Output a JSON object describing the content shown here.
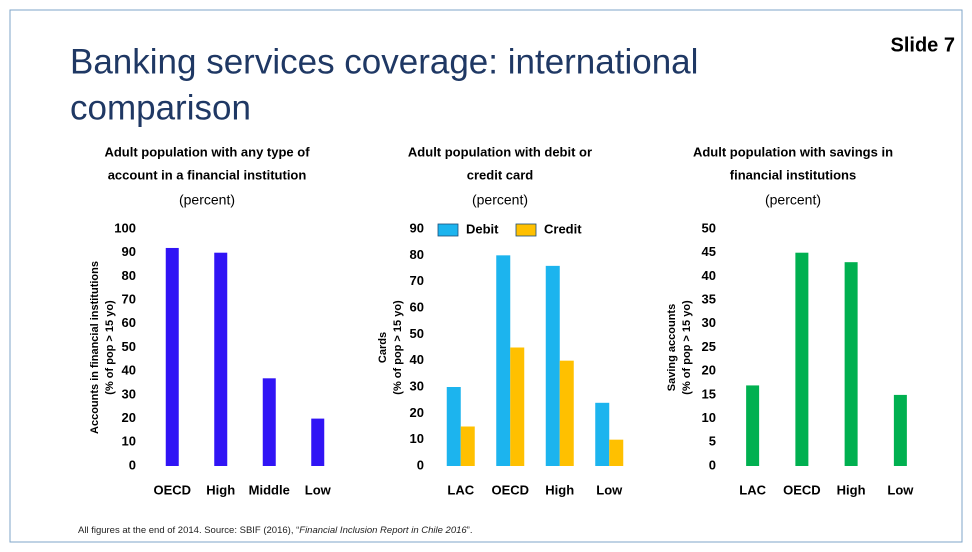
{
  "title": [
    "Banking services coverage: international",
    "comparison"
  ],
  "slide_label": "Slide 7",
  "footnote": [
    "All figures at the end of 2014. Source: SBIF (2016), “",
    "Financial Inclusion Report in Chile 2016",
    "”."
  ],
  "chart_data": [
    {
      "type": "bar",
      "title": [
        "Adult population with any type of",
        "account in a financial institution"
      ],
      "subtitle": "(percent)",
      "y_label": [
        "Accounts in financial institutions",
        "(% of pop > 15 yo)"
      ],
      "categories": [
        "OECD",
        "High",
        "Middle",
        "Low"
      ],
      "values": [
        92,
        90,
        37,
        20
      ],
      "color": "#3014f5",
      "ylim": [
        0,
        100
      ],
      "yticks": [
        0,
        10,
        20,
        30,
        40,
        50,
        60,
        70,
        80,
        90,
        100
      ],
      "grid": false
    },
    {
      "type": "bar",
      "title": [
        "Adult population with debit or",
        "credit card"
      ],
      "subtitle": "(percent)",
      "y_label": [
        "Cards",
        "(% of pop > 15 yo)"
      ],
      "categories": [
        "LAC",
        "OECD",
        "High",
        "Low"
      ],
      "series": [
        {
          "name": "Debit",
          "color": "#1cb4ee",
          "values": [
            30,
            80,
            76,
            24
          ]
        },
        {
          "name": "Credit",
          "color": "#ffc000",
          "values": [
            15,
            45,
            40,
            10
          ]
        }
      ],
      "ylim": [
        0,
        90
      ],
      "yticks": [
        0,
        10,
        20,
        30,
        40,
        50,
        60,
        70,
        80,
        90
      ],
      "grid": false,
      "legend": "top-left"
    },
    {
      "type": "bar",
      "title": [
        "Adult population with savings in",
        "financial institutions"
      ],
      "subtitle": "(percent)",
      "y_label": [
        "Saving accounts",
        "(% of pop > 15 yo)"
      ],
      "categories": [
        "LAC",
        "OECD",
        "High",
        "Low"
      ],
      "values": [
        17,
        45,
        43,
        15
      ],
      "color": "#00b050",
      "ylim": [
        0,
        50
      ],
      "yticks": [
        0,
        5,
        10,
        15,
        20,
        25,
        30,
        35,
        40,
        45,
        50
      ],
      "grid": false
    }
  ]
}
